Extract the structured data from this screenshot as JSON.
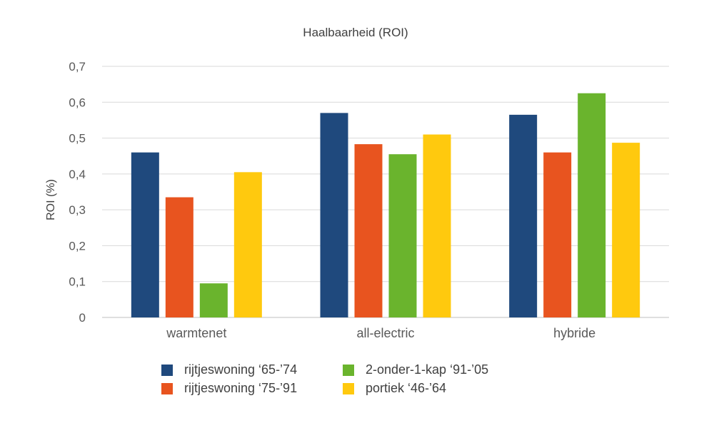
{
  "chart_data": {
    "type": "bar",
    "title": "Haalbaarheid (ROI)",
    "xlabel": "",
    "ylabel": "ROI (%)",
    "ylim": [
      0,
      0.7
    ],
    "yticks": [
      "0",
      "0,1",
      "0,2",
      "0,3",
      "0,4",
      "0,5",
      "0,6",
      "0,7"
    ],
    "ytick_values": [
      0,
      0.1,
      0.2,
      0.3,
      0.4,
      0.5,
      0.6,
      0.7
    ],
    "categories": [
      "warmtenet",
      "all-electric",
      "hybride"
    ],
    "grid": true,
    "legend_position": "bottom",
    "series": [
      {
        "name": "rijtjeswoning ‘65-’74",
        "color": "#1F497D",
        "values": [
          0.46,
          0.57,
          0.565
        ]
      },
      {
        "name": "rijtjeswoning ‘75-’91",
        "color": "#E8541F",
        "values": [
          0.335,
          0.483,
          0.46
        ]
      },
      {
        "name": "2-onder-1-kap ‘91-’05",
        "color": "#6AB42D",
        "values": [
          0.095,
          0.455,
          0.625
        ]
      },
      {
        "name": "portiek ‘46-’64",
        "color": "#FFC90E",
        "values": [
          0.405,
          0.51,
          0.487
        ]
      }
    ]
  }
}
